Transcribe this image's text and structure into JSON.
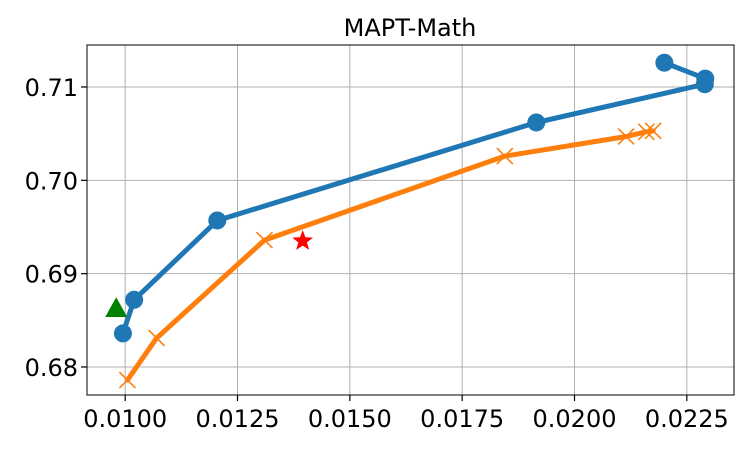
{
  "chart_data": {
    "type": "line",
    "title": "MAPT-Math",
    "xlabel": "",
    "ylabel": "",
    "xlim": [
      0.00915,
      0.02355
    ],
    "ylim": [
      0.677,
      0.7145
    ],
    "xticks": [
      0.01,
      0.0125,
      0.015,
      0.0175,
      0.02,
      0.0225
    ],
    "xtick_labels": [
      "0.0100",
      "0.0125",
      "0.0150",
      "0.0175",
      "0.0200",
      "0.0225"
    ],
    "yticks": [
      0.68,
      0.69,
      0.7,
      0.71
    ],
    "ytick_labels": [
      "0.68",
      "0.69",
      "0.70",
      "0.71"
    ],
    "grid": true,
    "series": [
      {
        "color": "#1f77b4",
        "marker": "circle",
        "points": [
          {
            "x": 0.00995,
            "y": 0.6836
          },
          {
            "x": 0.0102,
            "y": 0.6872
          },
          {
            "x": 0.01205,
            "y": 0.6957
          },
          {
            "x": 0.01915,
            "y": 0.7062
          },
          {
            "x": 0.0229,
            "y": 0.7103
          },
          {
            "x": 0.02291,
            "y": 0.7109
          },
          {
            "x": 0.022,
            "y": 0.7126
          }
        ]
      },
      {
        "color": "#ff7f0e",
        "marker": "x",
        "points": [
          {
            "x": 0.01005,
            "y": 0.6786
          },
          {
            "x": 0.0107,
            "y": 0.6831
          },
          {
            "x": 0.0131,
            "y": 0.6936
          },
          {
            "x": 0.01845,
            "y": 0.7026
          },
          {
            "x": 0.02115,
            "y": 0.7047
          },
          {
            "x": 0.0216,
            "y": 0.7052
          },
          {
            "x": 0.02175,
            "y": 0.7053
          }
        ]
      }
    ],
    "extra_points": [
      {
        "marker": "triangle",
        "color": "#008000",
        "x": 0.0098,
        "y": 0.6863
      },
      {
        "marker": "star",
        "color": "#ff0000",
        "x": 0.01395,
        "y": 0.6935
      }
    ]
  }
}
